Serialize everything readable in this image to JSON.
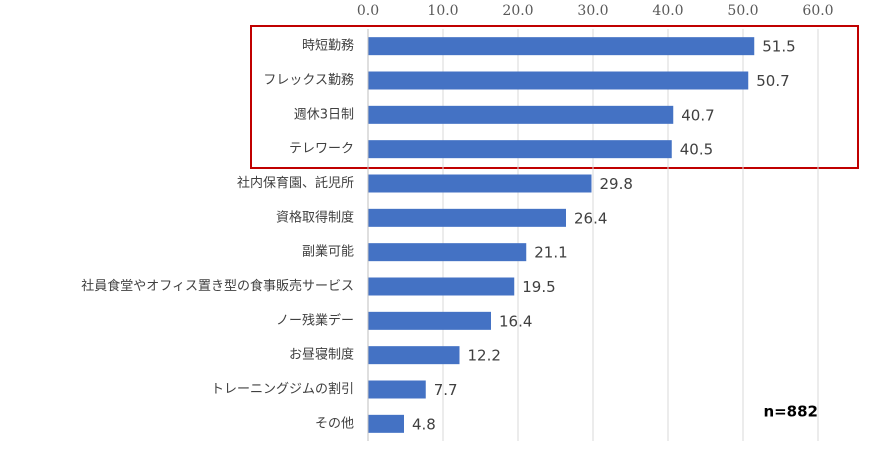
{
  "chart_data": {
    "type": "barh",
    "categories": [
      "時短勤務",
      "フレックス勤務",
      "週休3日制",
      "テレワーク",
      "社内保育園、託児所",
      "資格取得制度",
      "副業可能",
      "社員食堂やオフィス置き型の食事販売サービス",
      "ノー残業デー",
      "お昼寝制度",
      "トレーニングジムの割引",
      "その他"
    ],
    "values": [
      51.5,
      50.7,
      40.7,
      40.5,
      29.8,
      26.4,
      21.1,
      19.5,
      16.4,
      12.2,
      7.7,
      4.8
    ],
    "color": "#4472c4",
    "xlim": [
      0,
      60
    ],
    "xticks": [
      {
        "value": 0,
        "label": "0.0"
      },
      {
        "value": 10,
        "label": "10.0"
      },
      {
        "value": 20,
        "label": "20.0"
      },
      {
        "value": 30,
        "label": "30.0"
      },
      {
        "value": 40,
        "label": "40.0"
      },
      {
        "value": 50,
        "label": "50.0"
      },
      {
        "value": 60,
        "label": "60.0"
      }
    ],
    "grid": true,
    "annotation": "n=882"
  }
}
